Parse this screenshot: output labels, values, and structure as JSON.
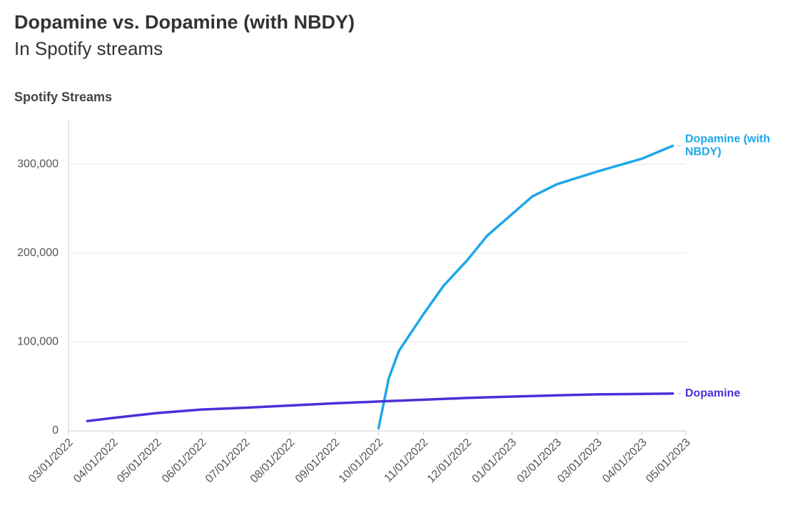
{
  "chart_data": {
    "type": "line",
    "title": "Dopamine vs. Dopamine (with NBDY)",
    "subtitle": "In Spotify streams",
    "y_label": "Spotify Streams",
    "xlim": [
      "2022-03-01",
      "2023-05-01"
    ],
    "xticks": [
      {
        "value": "2022-03-01",
        "label": "03/01/2022"
      },
      {
        "value": "2022-04-01",
        "label": "04/01/2022"
      },
      {
        "value": "2022-05-01",
        "label": "05/01/2022"
      },
      {
        "value": "2022-06-01",
        "label": "06/01/2022"
      },
      {
        "value": "2022-07-01",
        "label": "07/01/2022"
      },
      {
        "value": "2022-08-01",
        "label": "08/01/2022"
      },
      {
        "value": "2022-09-01",
        "label": "09/01/2022"
      },
      {
        "value": "2022-10-01",
        "label": "10/01/2022"
      },
      {
        "value": "2022-11-01",
        "label": "11/01/2022"
      },
      {
        "value": "2022-12-01",
        "label": "12/01/2022"
      },
      {
        "value": "2023-01-01",
        "label": "01/01/2023"
      },
      {
        "value": "2023-02-01",
        "label": "02/01/2023"
      },
      {
        "value": "2023-03-01",
        "label": "03/01/2023"
      },
      {
        "value": "2023-04-01",
        "label": "04/01/2023"
      },
      {
        "value": "2023-05-01",
        "label": "05/01/2023"
      }
    ],
    "ylim": [
      0,
      350000
    ],
    "yticks": [
      0,
      {
        "value": 100000,
        "label": "100,000"
      },
      {
        "value": 200000,
        "label": "200,000"
      },
      {
        "value": 300000,
        "label": "300,000"
      }
    ],
    "grid": true,
    "series": [
      {
        "name": "Dopamine (with NBDY)",
        "color": "#1fa6e8",
        "x": [
          "2022-10-01",
          "2022-10-08",
          "2022-10-15",
          "2022-11-01",
          "2022-11-15",
          "2022-12-01",
          "2022-12-15",
          "2023-01-01",
          "2023-01-15",
          "2023-02-01",
          "2023-03-01",
          "2023-04-01",
          "2023-04-22"
        ],
        "values": [
          3000,
          59000,
          90000,
          131500,
          163600,
          191700,
          219700,
          243800,
          263800,
          277500,
          291900,
          306400,
          320800
        ]
      },
      {
        "name": "Dopamine",
        "color": "#4a30d8",
        "x": [
          "2022-03-14",
          "2022-04-01",
          "2022-05-01",
          "2022-06-01",
          "2022-07-01",
          "2022-08-01",
          "2022-09-01",
          "2022-10-01",
          "2022-11-01",
          "2022-12-01",
          "2023-01-01",
          "2023-02-01",
          "2023-03-01",
          "2023-04-01",
          "2023-04-22"
        ],
        "values": [
          11000,
          14500,
          20000,
          24000,
          26000,
          28500,
          31000,
          33000,
          35000,
          37000,
          38500,
          40000,
          41000,
          41500,
          42000
        ]
      }
    ]
  }
}
